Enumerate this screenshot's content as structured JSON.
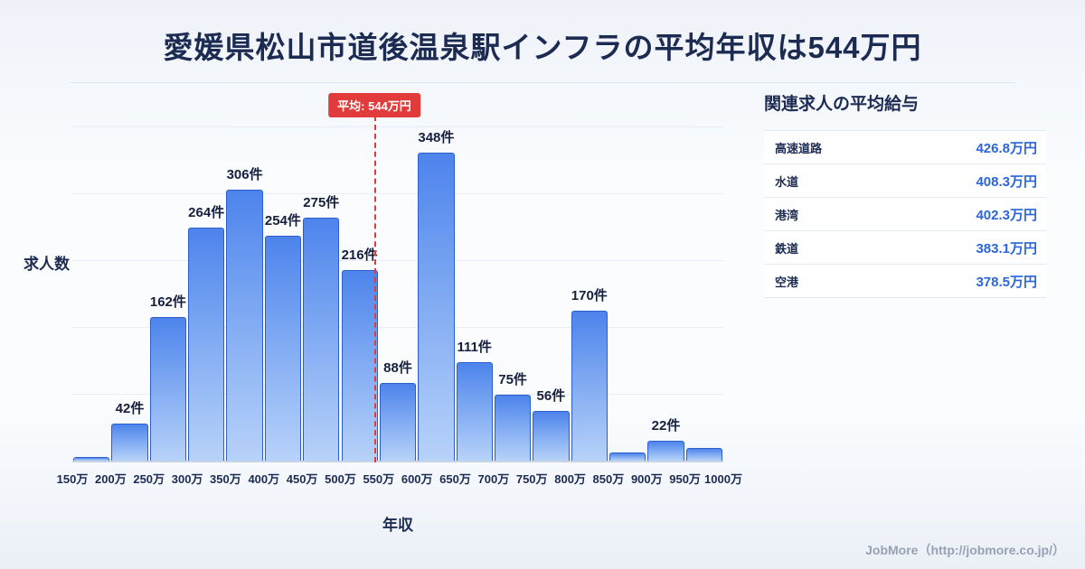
{
  "page": {
    "title": "愛媛県松山市道後温泉駅インフラの平均年収は544万円",
    "footer_credit": "JobMore（http://jobmore.co.jp/）"
  },
  "chart_data": {
    "type": "bar",
    "title": "愛媛県松山市道後温泉駅インフラの平均年収は544万円",
    "xlabel": "年収",
    "ylabel": "求人数",
    "unit_x": "万円",
    "unit_y": "件",
    "x_tick_labels": [
      "150万",
      "200万",
      "250万",
      "300万",
      "350万",
      "400万",
      "450万",
      "500万",
      "550万",
      "600万",
      "650万",
      "700万",
      "750万",
      "800万",
      "850万",
      "900万",
      "950万",
      "1000万"
    ],
    "x_range": [
      150,
      1000
    ],
    "bin_width": 50,
    "values": [
      4,
      42,
      162,
      264,
      306,
      254,
      275,
      216,
      88,
      348,
      111,
      75,
      56,
      170,
      9,
      22,
      14
    ],
    "bar_labels": [
      "",
      "42件",
      "162件",
      "264件",
      "306件",
      "254件",
      "275件",
      "216件",
      "88件",
      "348件",
      "111件",
      "75件",
      "56件",
      "170件",
      "",
      "22件",
      ""
    ],
    "ylim": [
      0,
      380
    ],
    "grid": "horizontal",
    "legend": "none",
    "average_line": {
      "value": 544,
      "label": "平均: 544万円",
      "color": "#e13b3b"
    }
  },
  "side_panel": {
    "title": "関連求人の平均給与",
    "rows": [
      {
        "name": "高速道路",
        "value": "426.8万円"
      },
      {
        "name": "水道",
        "value": "408.3万円"
      },
      {
        "name": "港湾",
        "value": "402.3万円"
      },
      {
        "name": "鉄道",
        "value": "383.1万円"
      },
      {
        "name": "空港",
        "value": "378.5万円"
      }
    ]
  },
  "colors": {
    "accent_red": "#e13b3b",
    "bar_top": "#4d84ec",
    "bar_bottom": "#b7d2f9",
    "bar_border": "#2c5fc9",
    "title_navy": "#1c2b52",
    "value_blue": "#2a66d9",
    "background": "#eef2f8"
  }
}
